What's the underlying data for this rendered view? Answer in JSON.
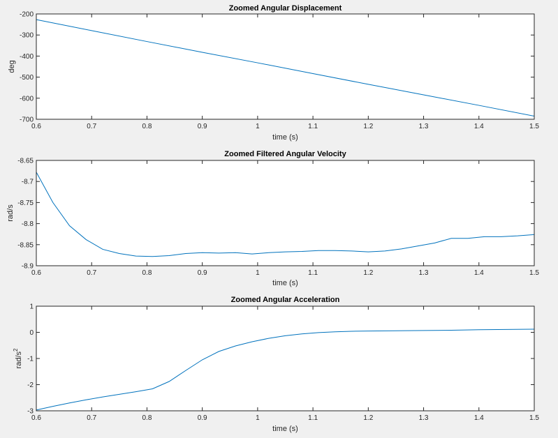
{
  "figure": {
    "background": "#f0f0f0",
    "axes_background": "#ffffff",
    "line_color": "#0072bd"
  },
  "chart_data": [
    {
      "type": "line",
      "title": "Zoomed Angular Displacement",
      "xlabel": "time (s)",
      "ylabel": "deg",
      "xlim": [
        0.6,
        1.5
      ],
      "ylim": [
        -700,
        -200
      ],
      "xticks": [
        0.6,
        0.7,
        0.8,
        0.9,
        1.0,
        1.1,
        1.2,
        1.3,
        1.4,
        1.5
      ],
      "xtick_labels": [
        "0.6",
        "0.7",
        "0.8",
        "0.9",
        "1",
        "1.1",
        "1.2",
        "1.3",
        "1.4",
        "1.5"
      ],
      "yticks": [
        -200,
        -300,
        -400,
        -500,
        -600,
        -700
      ],
      "ytick_labels": [
        "-200",
        "-300",
        "-400",
        "-500",
        "-600",
        "-700"
      ],
      "grid": false,
      "series": [
        {
          "x": [
            0.6,
            0.7,
            0.8,
            0.9,
            1.0,
            1.1,
            1.2,
            1.3,
            1.4,
            1.5
          ],
          "y": [
            -227,
            -279,
            -331,
            -382,
            -432,
            -483,
            -534,
            -584,
            -634,
            -685
          ]
        }
      ]
    },
    {
      "type": "line",
      "title": "Zoomed Filtered Angular Velocity",
      "xlabel": "time (s)",
      "ylabel": "rad/s",
      "xlim": [
        0.6,
        1.5
      ],
      "ylim": [
        -8.9,
        -8.65
      ],
      "xticks": [
        0.6,
        0.7,
        0.8,
        0.9,
        1.0,
        1.1,
        1.2,
        1.3,
        1.4,
        1.5
      ],
      "xtick_labels": [
        "0.6",
        "0.7",
        "0.8",
        "0.9",
        "1",
        "1.1",
        "1.2",
        "1.3",
        "1.4",
        "1.5"
      ],
      "yticks": [
        -8.65,
        -8.7,
        -8.75,
        -8.8,
        -8.85,
        -8.9
      ],
      "ytick_labels": [
        "-8.65",
        "-8.7",
        "-8.75",
        "-8.8",
        "-8.85",
        "-8.9"
      ],
      "grid": false,
      "series": [
        {
          "x": [
            0.6,
            0.63,
            0.66,
            0.69,
            0.72,
            0.75,
            0.78,
            0.81,
            0.84,
            0.87,
            0.9,
            0.93,
            0.96,
            0.99,
            1.02,
            1.05,
            1.08,
            1.11,
            1.14,
            1.17,
            1.2,
            1.23,
            1.26,
            1.29,
            1.32,
            1.35,
            1.38,
            1.41,
            1.44,
            1.47,
            1.5
          ],
          "y": [
            -8.678,
            -8.75,
            -8.805,
            -8.838,
            -8.861,
            -8.871,
            -8.877,
            -8.878,
            -8.876,
            -8.871,
            -8.869,
            -8.87,
            -8.869,
            -8.872,
            -8.869,
            -8.867,
            -8.866,
            -8.864,
            -8.864,
            -8.865,
            -8.867,
            -8.865,
            -8.86,
            -8.853,
            -8.846,
            -8.835,
            -8.835,
            -8.831,
            -8.831,
            -8.829,
            -8.826
          ]
        }
      ]
    },
    {
      "type": "line",
      "title": "Zoomed Angular Acceleration",
      "xlabel": "time (s)",
      "ylabel": "rad/s",
      "ylabel_superscript": "2",
      "xlim": [
        0.6,
        1.5
      ],
      "ylim": [
        -3,
        1
      ],
      "xticks": [
        0.6,
        0.7,
        0.8,
        0.9,
        1.0,
        1.1,
        1.2,
        1.3,
        1.4,
        1.5
      ],
      "xtick_labels": [
        "0.6",
        "0.7",
        "0.8",
        "0.9",
        "1",
        "1.1",
        "1.2",
        "1.3",
        "1.4",
        "1.5"
      ],
      "yticks": [
        1,
        0,
        -1,
        -2,
        -3
      ],
      "ytick_labels": [
        "1",
        "0",
        "-1",
        "-2",
        "-3"
      ],
      "grid": false,
      "series": [
        {
          "x": [
            0.6,
            0.63,
            0.66,
            0.69,
            0.72,
            0.75,
            0.78,
            0.81,
            0.84,
            0.87,
            0.9,
            0.93,
            0.96,
            0.99,
            1.02,
            1.05,
            1.08,
            1.11,
            1.14,
            1.17,
            1.2,
            1.25,
            1.3,
            1.35,
            1.4,
            1.45,
            1.5
          ],
          "y": [
            -2.97,
            -2.83,
            -2.7,
            -2.58,
            -2.47,
            -2.37,
            -2.27,
            -2.16,
            -1.88,
            -1.46,
            -1.05,
            -0.73,
            -0.52,
            -0.36,
            -0.23,
            -0.13,
            -0.06,
            -0.01,
            0.02,
            0.04,
            0.05,
            0.06,
            0.07,
            0.08,
            0.1,
            0.11,
            0.12
          ]
        }
      ]
    }
  ]
}
